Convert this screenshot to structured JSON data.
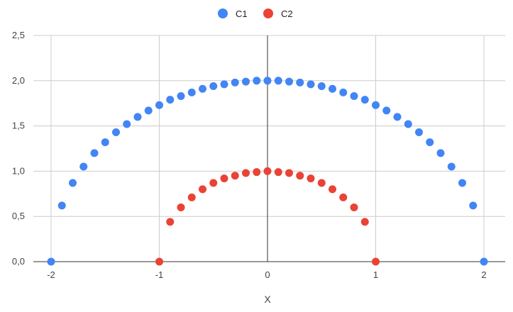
{
  "chart_data": {
    "type": "scatter",
    "title": "",
    "xlabel": "X",
    "ylabel": "",
    "xlim": [
      -2,
      2
    ],
    "ylim": [
      0,
      2.5
    ],
    "x_ticks": [
      -2,
      -1,
      0,
      1,
      2
    ],
    "y_ticks": [
      0,
      0.5,
      1,
      1.5,
      2,
      2.5
    ],
    "x_tick_labels": [
      "-2",
      "-1",
      "0",
      "1",
      "2"
    ],
    "y_tick_labels": [
      "0,0",
      "0,5",
      "1,0",
      "1,5",
      "2,0",
      "2,5"
    ],
    "grid": true,
    "legend_position": "top",
    "series": [
      {
        "name": "C1",
        "color": "#4285f4",
        "x": [
          -2.0,
          -1.9,
          -1.8,
          -1.7,
          -1.6,
          -1.5,
          -1.4,
          -1.3,
          -1.2,
          -1.1,
          -1.0,
          -0.9,
          -0.8,
          -0.7,
          -0.6,
          -0.5,
          -0.4,
          -0.3,
          -0.2,
          -0.1,
          0.0,
          0.1,
          0.2,
          0.3,
          0.4,
          0.5,
          0.6,
          0.7,
          0.8,
          0.9,
          1.0,
          1.1,
          1.2,
          1.3,
          1.4,
          1.5,
          1.6,
          1.7,
          1.8,
          1.9,
          2.0
        ],
        "y": [
          0.0,
          0.62,
          0.87,
          1.05,
          1.2,
          1.32,
          1.43,
          1.52,
          1.6,
          1.67,
          1.73,
          1.79,
          1.83,
          1.87,
          1.91,
          1.94,
          1.96,
          1.98,
          1.99,
          2.0,
          2.0,
          2.0,
          1.99,
          1.98,
          1.96,
          1.94,
          1.91,
          1.87,
          1.83,
          1.79,
          1.73,
          1.67,
          1.6,
          1.52,
          1.43,
          1.32,
          1.2,
          1.05,
          0.87,
          0.62,
          0.0
        ]
      },
      {
        "name": "C2",
        "color": "#ea4335",
        "x": [
          -1.0,
          -0.9,
          -0.8,
          -0.7,
          -0.6,
          -0.5,
          -0.4,
          -0.3,
          -0.2,
          -0.1,
          0.0,
          0.1,
          0.2,
          0.3,
          0.4,
          0.5,
          0.6,
          0.7,
          0.8,
          0.9,
          1.0
        ],
        "y": [
          0.0,
          0.44,
          0.6,
          0.71,
          0.8,
          0.87,
          0.92,
          0.95,
          0.98,
          0.99,
          1.0,
          0.99,
          0.98,
          0.95,
          0.92,
          0.87,
          0.8,
          0.71,
          0.6,
          0.44,
          0.0
        ]
      }
    ]
  }
}
